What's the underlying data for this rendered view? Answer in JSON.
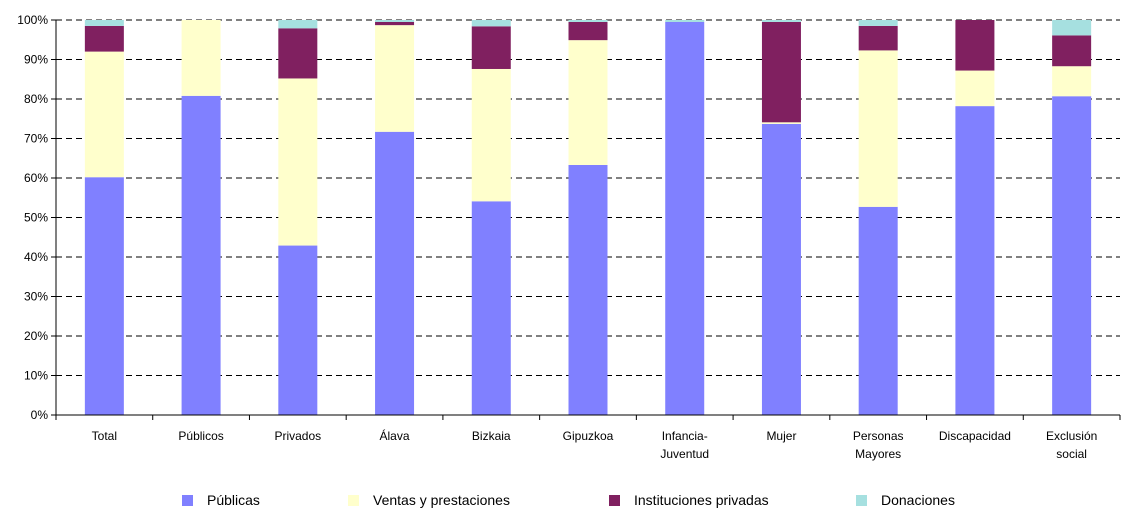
{
  "chart_data": {
    "type": "bar",
    "stacked": true,
    "percent_stacked": true,
    "categories": [
      "Total",
      "Públicos",
      "Privados",
      "Álava",
      "Bizkaia",
      "Gipuzkoa",
      "Infancia-Juventud",
      "Mujer",
      "Personas Mayores",
      "Discapacidad",
      "Exclusión social"
    ],
    "category_lines": [
      [
        "Total"
      ],
      [
        "Públicos"
      ],
      [
        "Privados"
      ],
      [
        "Álava"
      ],
      [
        "Bizkaia"
      ],
      [
        "Gipuzkoa"
      ],
      [
        "Infancia-",
        "Juventud"
      ],
      [
        "Mujer"
      ],
      [
        "Personas",
        "Mayores"
      ],
      [
        "Discapacidad"
      ],
      [
        "Exclusión",
        "social"
      ]
    ],
    "series": [
      {
        "name": "Públicas",
        "color": "#8080FF",
        "values": [
          60.2,
          80.8,
          42.9,
          71.7,
          54.1,
          63.3,
          99.5,
          73.7,
          52.7,
          78.2,
          80.7
        ]
      },
      {
        "name": "Ventas y prestaciones",
        "color": "#FFFFCC",
        "values": [
          31.8,
          19.2,
          42.3,
          27.0,
          33.5,
          31.6,
          0.0,
          0.4,
          39.6,
          9.0,
          7.6
        ]
      },
      {
        "name": "Instituciones privadas",
        "color": "#802060",
        "values": [
          6.5,
          0.0,
          12.7,
          0.8,
          10.8,
          4.6,
          0.0,
          25.4,
          6.2,
          12.8,
          7.8
        ]
      },
      {
        "name": "Donaciones",
        "color": "#A6E0E0",
        "values": [
          1.5,
          0.0,
          2.1,
          0.5,
          1.6,
          0.5,
          0.5,
          0.5,
          1.5,
          0.0,
          3.9
        ]
      }
    ],
    "y_ticks": [
      "0%",
      "10%",
      "20%",
      "30%",
      "40%",
      "50%",
      "60%",
      "70%",
      "80%",
      "90%",
      "100%"
    ],
    "ylim": [
      0,
      100
    ],
    "grid": "dashed horizontal",
    "legend_position": "bottom"
  }
}
